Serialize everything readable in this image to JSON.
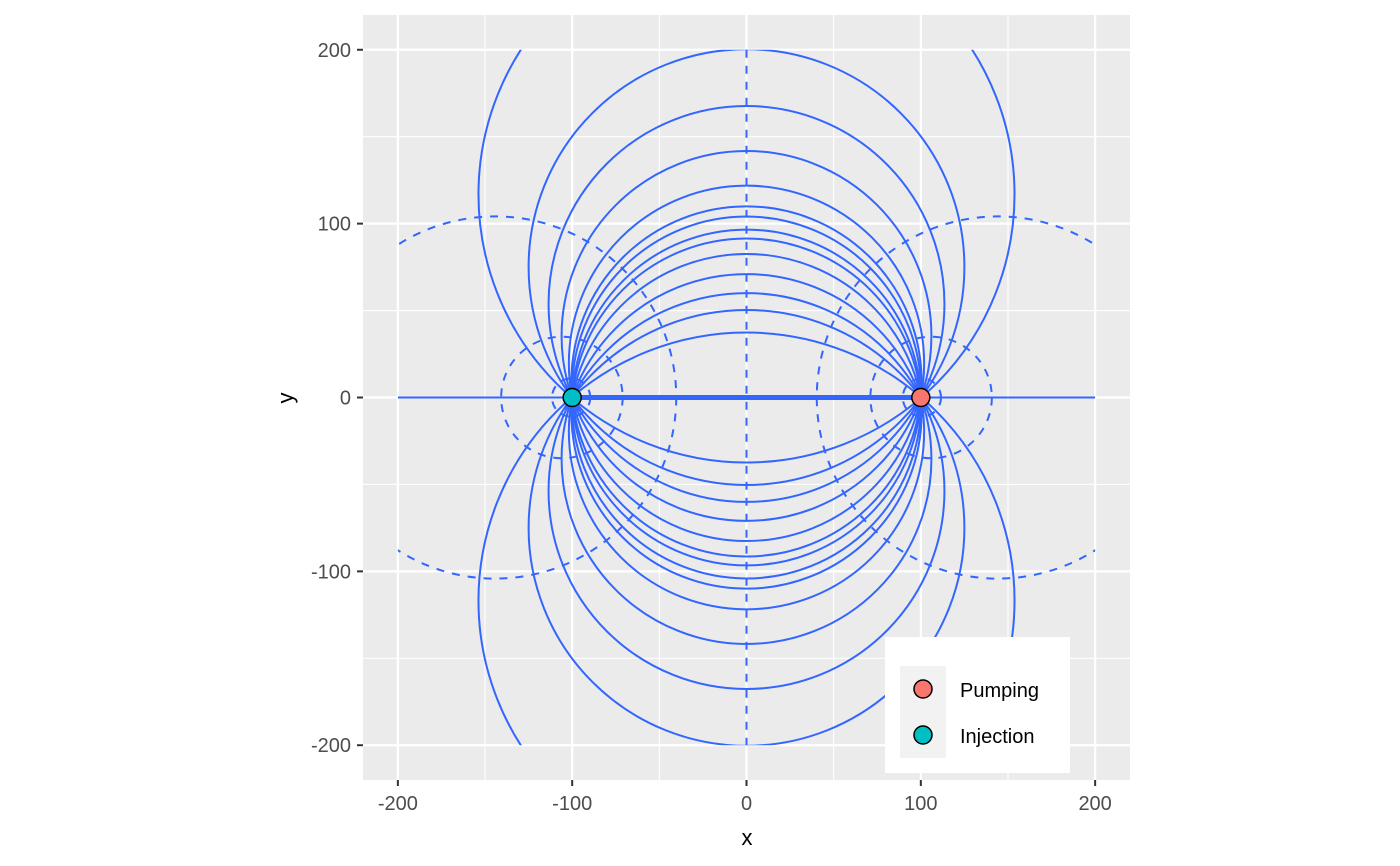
{
  "chart_data": {
    "type": "line",
    "title": "",
    "xlabel": "x",
    "ylabel": "y",
    "xlim": [
      -220,
      220
    ],
    "ylim": [
      -220,
      220
    ],
    "x_ticks": [
      -200,
      -100,
      0,
      100,
      200
    ],
    "y_ticks": [
      -200,
      -100,
      0,
      100,
      200
    ],
    "x_tick_labels": [
      "-200",
      "-100",
      "0",
      "100",
      "200"
    ],
    "y_tick_labels": [
      "-200",
      "-100",
      "0",
      "100",
      "200"
    ],
    "grid": true,
    "panel_background": "#ebebeb",
    "line_color": "#3366ff",
    "wells": [
      {
        "name": "Pumping",
        "x": 100,
        "y": 0,
        "color": "#f8766d"
      },
      {
        "name": "Injection",
        "x": -100,
        "y": 0,
        "color": "#00bfc4"
      }
    ],
    "streamlines": {
      "style": "solid",
      "centers_y": [
        3.75,
        9.25,
        19.65,
        35.4,
        53.8,
        75.0,
        116.8,
        -3.75,
        -9.25,
        -19.65,
        -35.4,
        -53.8,
        -75.0,
        -116.8
      ],
      "straight_lines_y": [
        0
      ],
      "domain": [
        -200,
        200,
        -200,
        200
      ]
    },
    "potential_lines": {
      "style": "dashed",
      "centers_x": [
        -144.2,
        -105.9,
        -100.6,
        100.6,
        105.9,
        144.2
      ],
      "straight_lines_x": [
        0
      ],
      "domain": [
        -200,
        200,
        -200,
        200
      ]
    },
    "legend": {
      "position": "bottom-right",
      "entries": [
        "Pumping",
        "Injection"
      ]
    }
  }
}
